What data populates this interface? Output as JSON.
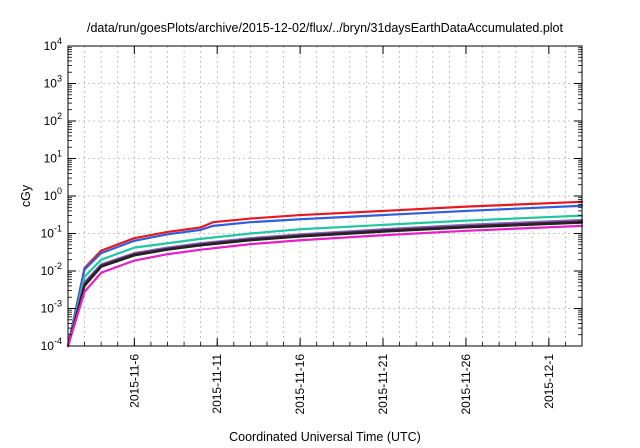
{
  "chart_data": {
    "type": "line",
    "title": "/data/run/goesPlots/archive/2015-12-02/flux/../bryn/31daysEarthDataAccumulated.plot",
    "xlabel": "Coordinated Universal Time (UTC)",
    "ylabel": "cGy",
    "y_scale": "log",
    "ylim": [
      0.0001,
      10000
    ],
    "y_ticks": [
      {
        "value": 0.0001,
        "base": "10",
        "exp": "-4"
      },
      {
        "value": 0.001,
        "base": "10",
        "exp": "-3"
      },
      {
        "value": 0.01,
        "base": "10",
        "exp": "-2"
      },
      {
        "value": 0.1,
        "base": "10",
        "exp": "-1"
      },
      {
        "value": 1,
        "base": "10",
        "exp": "0"
      },
      {
        "value": 10,
        "base": "10",
        "exp": "1"
      },
      {
        "value": 100,
        "base": "10",
        "exp": "2"
      },
      {
        "value": 1000,
        "base": "10",
        "exp": "3"
      },
      {
        "value": 10000,
        "base": "10",
        "exp": "4"
      }
    ],
    "x_axis": "date",
    "xlim": [
      "2015-11-02",
      "2015-12-03"
    ],
    "x_ticks": [
      "2015-11-6",
      "2015-11-11",
      "2015-11-16",
      "2015-11-21",
      "2015-11-26",
      "2015-12-1"
    ],
    "x_tick_dates": [
      "2015-11-06",
      "2015-11-11",
      "2015-11-16",
      "2015-11-21",
      "2015-11-26",
      "2015-12-01"
    ],
    "grid": true,
    "series": [
      {
        "color": "#e8191e",
        "x": [
          "2015-11-02",
          "2015-11-03",
          "2015-11-04",
          "2015-11-06",
          "2015-11-08",
          "2015-11-10",
          "2015-11-10T18:00",
          "2015-11-13",
          "2015-11-16",
          "2015-11-21",
          "2015-11-26",
          "2015-12-03"
        ],
        "values": [
          0.0001,
          0.012,
          0.035,
          0.075,
          0.11,
          0.145,
          0.2,
          0.25,
          0.31,
          0.4,
          0.52,
          0.7
        ]
      },
      {
        "color": "#2f5ee0",
        "x": [
          "2015-11-02",
          "2015-11-03",
          "2015-11-04",
          "2015-11-06",
          "2015-11-08",
          "2015-11-10",
          "2015-11-10T18:00",
          "2015-11-13",
          "2015-11-16",
          "2015-11-21",
          "2015-11-26",
          "2015-12-03"
        ],
        "values": [
          0.0001,
          0.011,
          0.03,
          0.064,
          0.095,
          0.125,
          0.16,
          0.2,
          0.24,
          0.31,
          0.4,
          0.55
        ]
      },
      {
        "color": "#1fc8a0",
        "x": [
          "2015-11-02",
          "2015-11-03",
          "2015-11-04",
          "2015-11-06",
          "2015-11-08",
          "2015-11-10",
          "2015-11-13",
          "2015-11-16",
          "2015-11-21",
          "2015-11-26",
          "2015-12-03"
        ],
        "values": [
          0.0001,
          0.007,
          0.02,
          0.042,
          0.055,
          0.072,
          0.1,
          0.13,
          0.17,
          0.22,
          0.3
        ]
      },
      {
        "color": "#7a6dc8",
        "x": [
          "2015-11-02",
          "2015-11-03",
          "2015-11-04",
          "2015-11-06",
          "2015-11-08",
          "2015-11-10",
          "2015-11-13",
          "2015-11-16",
          "2015-11-21",
          "2015-11-26",
          "2015-12-03"
        ],
        "values": [
          0.0001,
          0.005,
          0.015,
          0.03,
          0.042,
          0.055,
          0.075,
          0.095,
          0.13,
          0.17,
          0.23
        ]
      },
      {
        "color": "#5a1a3a",
        "x": [
          "2015-11-02",
          "2015-11-03",
          "2015-11-04",
          "2015-11-06",
          "2015-11-08",
          "2015-11-10",
          "2015-11-13",
          "2015-11-16",
          "2015-11-21",
          "2015-11-26",
          "2015-12-03"
        ],
        "values": [
          0.0001,
          0.0045,
          0.014,
          0.028,
          0.039,
          0.051,
          0.07,
          0.088,
          0.12,
          0.155,
          0.21
        ]
      },
      {
        "color": "#222222",
        "x": [
          "2015-11-02",
          "2015-11-03",
          "2015-11-04",
          "2015-11-06",
          "2015-11-08",
          "2015-11-10",
          "2015-11-13",
          "2015-11-16",
          "2015-11-21",
          "2015-11-26",
          "2015-12-03"
        ],
        "values": [
          0.0001,
          0.004,
          0.013,
          0.026,
          0.037,
          0.048,
          0.066,
          0.083,
          0.112,
          0.145,
          0.195
        ]
      },
      {
        "color": "#e81ec8",
        "x": [
          "2015-11-02",
          "2015-11-03",
          "2015-11-04",
          "2015-11-06",
          "2015-11-08",
          "2015-11-10",
          "2015-11-13",
          "2015-11-16",
          "2015-11-21",
          "2015-11-26",
          "2015-12-03"
        ],
        "values": [
          0.0001,
          0.0028,
          0.009,
          0.019,
          0.028,
          0.037,
          0.052,
          0.066,
          0.09,
          0.118,
          0.16
        ]
      }
    ]
  }
}
